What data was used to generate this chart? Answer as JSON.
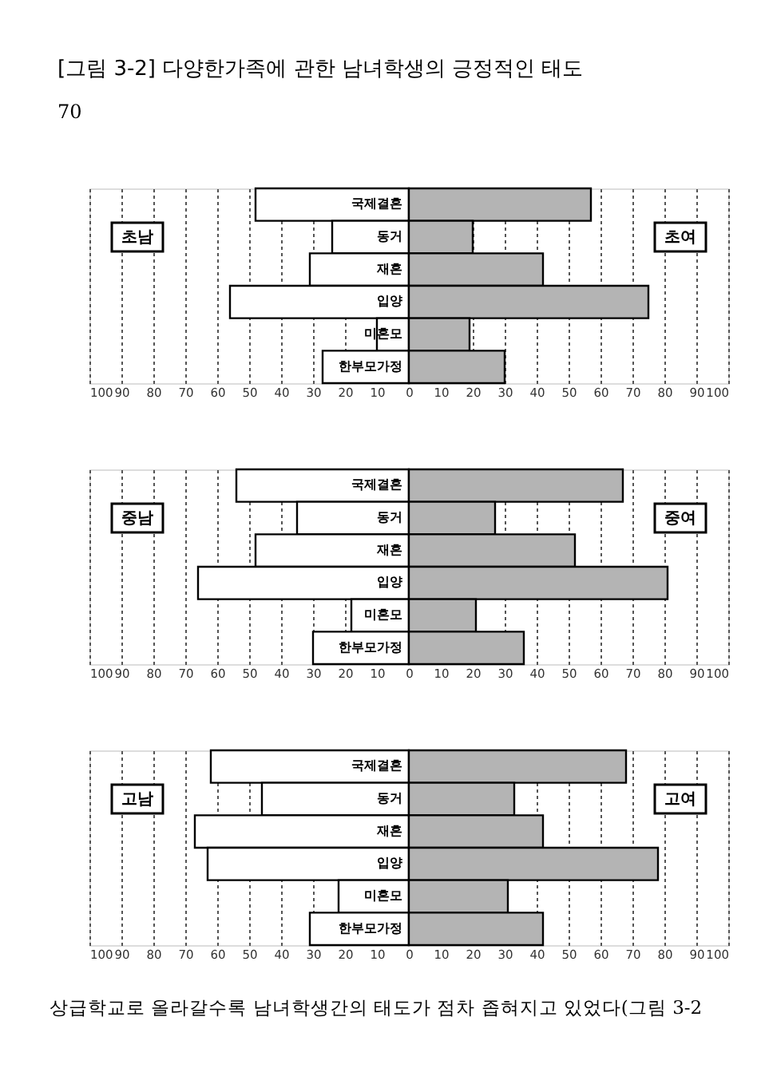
{
  "chart_data": [
    {
      "type": "bar",
      "orientation": "horizontal",
      "stacked": true,
      "title": "[그림 3-2]  다양한가족에 관한 남녀학생의 긍정적인 태도",
      "annotations": [
        "70"
      ],
      "categories": [
        "국제결혼",
        "동거",
        "재혼",
        "입양",
        "미혼모",
        "한부모가정"
      ],
      "series": [
        {
          "name": "초남",
          "color": "#ffffff",
          "values": [
            -48,
            -24,
            -31,
            -56,
            -10,
            -27
          ]
        },
        {
          "name": "초여",
          "color": "#b4b4b4",
          "values": [
            57,
            20,
            42,
            75,
            19,
            30
          ]
        }
      ],
      "xlim": [
        -100,
        100
      ],
      "xticks": [
        {
          "value": -100,
          "label": "100"
        },
        {
          "value": -90,
          "label": "90"
        },
        {
          "value": -80,
          "label": "80"
        },
        {
          "value": -70,
          "label": "70"
        },
        {
          "value": -60,
          "label": "60"
        },
        {
          "value": -50,
          "label": "50"
        },
        {
          "value": -40,
          "label": "40"
        },
        {
          "value": -30,
          "label": "30"
        },
        {
          "value": -20,
          "label": "20"
        },
        {
          "value": -10,
          "label": "10"
        },
        0,
        10,
        20,
        30,
        40,
        50,
        60,
        70,
        80,
        90,
        100
      ],
      "grid": "x",
      "legend": false
    },
    {
      "type": "bar",
      "orientation": "horizontal",
      "stacked": true,
      "categories": [
        "국제결혼",
        "동거",
        "재혼",
        "입양",
        "미혼모",
        "한부모가정"
      ],
      "series": [
        {
          "name": "중남",
          "color": "#ffffff",
          "values": [
            -54,
            -35,
            -48,
            -66,
            -18,
            -30
          ]
        },
        {
          "name": "중여",
          "color": "#b4b4b4",
          "values": [
            67,
            27,
            52,
            81,
            21,
            36
          ]
        }
      ],
      "xlim": [
        -100,
        100
      ],
      "xticks": [
        {
          "value": -100,
          "label": "100"
        },
        {
          "value": -90,
          "label": "90"
        },
        {
          "value": -80,
          "label": "80"
        },
        {
          "value": -70,
          "label": "70"
        },
        {
          "value": -60,
          "label": "60"
        },
        {
          "value": -50,
          "label": "50"
        },
        {
          "value": -40,
          "label": "40"
        },
        {
          "value": -30,
          "label": "30"
        },
        {
          "value": -20,
          "label": "20"
        },
        {
          "value": -10,
          "label": "10"
        },
        0,
        10,
        20,
        30,
        40,
        50,
        60,
        70,
        80,
        90,
        100
      ],
      "grid": "x",
      "legend": false
    },
    {
      "type": "bar",
      "orientation": "horizontal",
      "stacked": true,
      "annotations": [
        "상급학교로 올라갈수록 남녀학생간의 태도가 점차 좁혀지고 있었다(그림 3-2"
      ],
      "categories": [
        "국제결혼",
        "동거",
        "재혼",
        "입양",
        "미혼모",
        "한부모가정"
      ],
      "series": [
        {
          "name": "고남",
          "color": "#ffffff",
          "values": [
            -62,
            -46,
            -67,
            -63,
            -22,
            -31
          ]
        },
        {
          "name": "고여",
          "color": "#b4b4b4",
          "values": [
            68,
            33,
            42,
            78,
            31,
            42
          ]
        }
      ],
      "xlim": [
        -100,
        100
      ],
      "xticks": [
        {
          "value": -100,
          "label": "100"
        },
        {
          "value": -90,
          "label": "90"
        },
        {
          "value": -80,
          "label": "80"
        },
        {
          "value": -70,
          "label": "70"
        },
        {
          "value": -60,
          "label": "60"
        },
        {
          "value": -50,
          "label": "50"
        },
        {
          "value": -40,
          "label": "40"
        },
        {
          "value": -30,
          "label": "30"
        },
        {
          "value": -20,
          "label": "20"
        },
        {
          "value": -10,
          "label": "10"
        },
        0,
        10,
        20,
        30,
        40,
        50,
        60,
        70,
        80,
        90,
        100
      ],
      "grid": "x",
      "legend": false
    }
  ]
}
